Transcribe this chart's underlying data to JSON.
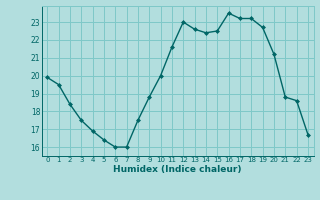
{
  "x": [
    0,
    1,
    2,
    3,
    4,
    5,
    6,
    7,
    8,
    9,
    10,
    11,
    12,
    13,
    14,
    15,
    16,
    17,
    18,
    19,
    20,
    21,
    22,
    23
  ],
  "y": [
    19.9,
    19.5,
    18.4,
    17.5,
    16.9,
    16.4,
    16.0,
    16.0,
    17.5,
    18.8,
    20.0,
    21.6,
    23.0,
    22.6,
    22.4,
    22.5,
    23.5,
    23.2,
    23.2,
    22.7,
    21.2,
    18.8,
    18.6,
    16.7
  ],
  "xlabel": "Humidex (Indice chaleur)",
  "bg_color": "#b2dede",
  "grid_color": "#7ec8c8",
  "line_color": "#006666",
  "marker_color": "#006666",
  "ylim": [
    15.5,
    23.9
  ],
  "yticks": [
    16,
    17,
    18,
    19,
    20,
    21,
    22,
    23
  ],
  "xlim": [
    -0.5,
    23.5
  ],
  "xticks": [
    0,
    1,
    2,
    3,
    4,
    5,
    6,
    7,
    8,
    9,
    10,
    11,
    12,
    13,
    14,
    15,
    16,
    17,
    18,
    19,
    20,
    21,
    22,
    23
  ]
}
